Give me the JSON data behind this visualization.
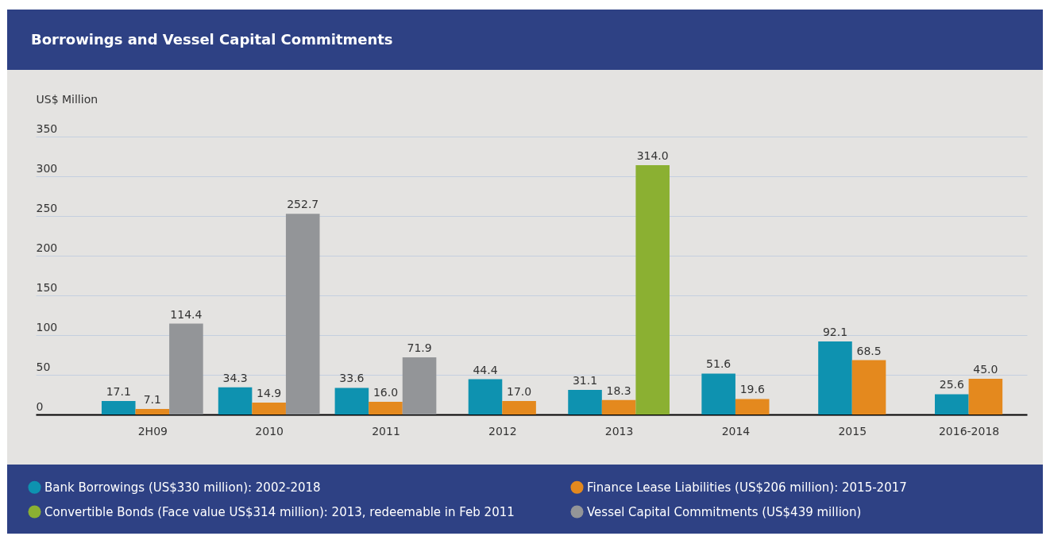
{
  "chart_data": {
    "type": "bar",
    "title": "Borrowings and Vessel Capital Commitments",
    "ylabel": "US$ Million",
    "categories": [
      "2H09",
      "2010",
      "2011",
      "2012",
      "2013",
      "2014",
      "2015",
      "2016-2018"
    ],
    "series": [
      {
        "name": "Bank Borrowings (US$330 million): 2002-2018",
        "color": "#0e92b0",
        "values": [
          17.1,
          34.3,
          33.6,
          44.4,
          31.1,
          51.6,
          92.1,
          25.6
        ],
        "value_labels": [
          "17.1",
          "34.3",
          "33.6",
          "44.4",
          "31.1",
          "51.6",
          "92.1",
          "25.6"
        ]
      },
      {
        "name": "Finance Lease Liabilities (US$206 million): 2015-2017",
        "color": "#e4891e",
        "values": [
          7.1,
          14.9,
          16.0,
          17.0,
          18.3,
          19.6,
          68.5,
          45.0
        ],
        "value_labels": [
          "7.1",
          "14.9",
          "16.0",
          "17.0",
          "18.3",
          "19.6",
          "68.5",
          "45.0"
        ]
      },
      {
        "name": "Convertible Bonds (Face value US$314 million): 2013, redeemable in Feb 2011",
        "color": "#8bb032",
        "values": [
          null,
          null,
          null,
          null,
          314.0,
          null,
          null,
          null
        ],
        "value_labels": [
          null,
          null,
          null,
          null,
          "314.0",
          null,
          null,
          null
        ]
      },
      {
        "name": "Vessel Capital Commitments (US$439 million)",
        "color": "#939598",
        "values": [
          114.4,
          252.7,
          71.9,
          null,
          null,
          null,
          null,
          null
        ],
        "value_labels": [
          "114.4",
          "252.7",
          "71.9",
          null,
          null,
          null,
          null,
          null
        ]
      }
    ],
    "ylim": [
      0,
      350
    ],
    "yticks": [
      0,
      50,
      100,
      150,
      200,
      250,
      300,
      350
    ],
    "grid": "y",
    "legend": "bottom"
  }
}
